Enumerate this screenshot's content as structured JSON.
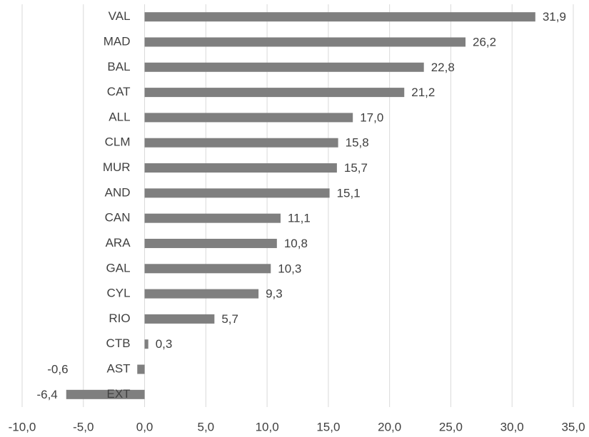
{
  "chart_data": {
    "type": "hbar",
    "categories": [
      "VAL",
      "MAD",
      "BAL",
      "CAT",
      "ALL",
      "CLM",
      "MUR",
      "AND",
      "CAN",
      "ARA",
      "GAL",
      "CYL",
      "RIO",
      "CTB",
      "AST",
      "EXT"
    ],
    "values": [
      31.9,
      26.2,
      22.8,
      21.2,
      17.0,
      15.8,
      15.7,
      15.1,
      11.1,
      10.8,
      10.3,
      9.3,
      5.7,
      0.3,
      -0.6,
      -6.4
    ],
    "value_labels": [
      "31,9",
      "26,2",
      "22,8",
      "21,2",
      "17,0",
      "15,8",
      "15,7",
      "15,1",
      "11,1",
      "10,8",
      "10,3",
      "9,3",
      "5,7",
      "0,3",
      "-0,6",
      "-6,4"
    ],
    "color": "#7f7f7f",
    "xlim": [
      -10,
      35
    ],
    "xticks": [
      {
        "value": -10,
        "label": "-10,0"
      },
      {
        "value": -5,
        "label": "-5,0"
      },
      {
        "value": 0,
        "label": "0,0"
      },
      {
        "value": 5,
        "label": "5,0"
      },
      {
        "value": 10,
        "label": "10,0"
      },
      {
        "value": 15,
        "label": "15,0"
      },
      {
        "value": 20,
        "label": "20,0"
      },
      {
        "value": 25,
        "label": "25,0"
      },
      {
        "value": 30,
        "label": "30,0"
      },
      {
        "value": 35,
        "label": "35,0"
      }
    ],
    "grid": true
  }
}
